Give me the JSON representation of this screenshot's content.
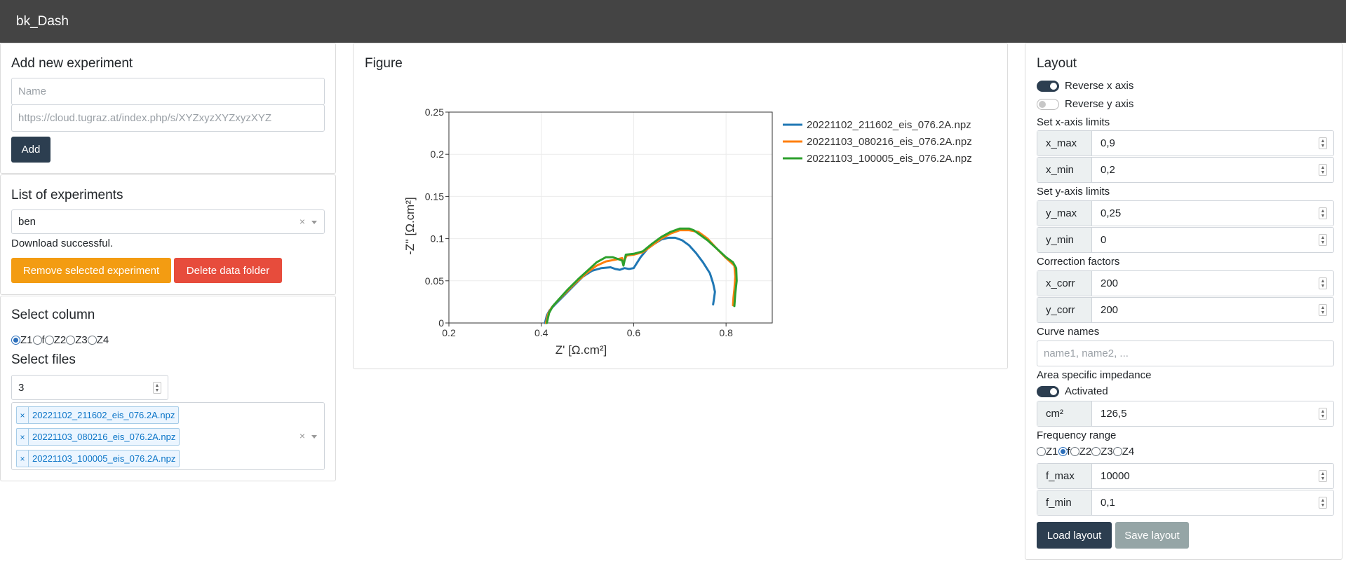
{
  "app": {
    "title": "bk_Dash"
  },
  "add_experiment": {
    "title": "Add new experiment",
    "name_placeholder": "Name",
    "url_placeholder": "https://cloud.tugraz.at/index.php/s/XYZxyzXYZxyzXYZ",
    "add_label": "Add"
  },
  "experiments": {
    "title": "List of experiments",
    "selected": "ben",
    "status": "Download successful.",
    "remove_label": "Remove selected experiment",
    "delete_label": "Delete data folder"
  },
  "columns": {
    "title": "Select column",
    "options": [
      "Z1",
      "f",
      "Z2",
      "Z3",
      "Z4"
    ],
    "selected": "Z1"
  },
  "files": {
    "title": "Select files",
    "count": "3",
    "selected": [
      "20221102_211602_eis_076.2A.npz",
      "20221103_080216_eis_076.2A.npz",
      "20221103_100005_eis_076.2A.npz"
    ]
  },
  "figure": {
    "title": "Figure"
  },
  "chart_data": {
    "type": "line",
    "xlabel": "Z' [Ω.cm²]",
    "ylabel": "-Z'' [Ω.cm²]",
    "xlim": [
      0.2,
      0.9
    ],
    "ylim": [
      0,
      0.25
    ],
    "xticks": [
      "0.2",
      "0.4",
      "0.6",
      "0.8"
    ],
    "yticks": [
      "0",
      "0.05",
      "0.1",
      "0.15",
      "0.2",
      "0.25"
    ],
    "grid": true,
    "legend": "right",
    "series": [
      {
        "name": "20221102_211602_eis_076.2A.npz",
        "color": "#1f77b4",
        "points": [
          [
            0.408,
            0
          ],
          [
            0.412,
            0.009
          ],
          [
            0.418,
            0.015
          ],
          [
            0.43,
            0.022
          ],
          [
            0.45,
            0.033
          ],
          [
            0.47,
            0.044
          ],
          [
            0.49,
            0.055
          ],
          [
            0.51,
            0.062
          ],
          [
            0.53,
            0.065
          ],
          [
            0.55,
            0.066
          ],
          [
            0.56,
            0.064
          ],
          [
            0.57,
            0.063
          ],
          [
            0.58,
            0.065
          ],
          [
            0.59,
            0.064
          ],
          [
            0.6,
            0.065
          ],
          [
            0.615,
            0.078
          ],
          [
            0.63,
            0.088
          ],
          [
            0.645,
            0.094
          ],
          [
            0.66,
            0.099
          ],
          [
            0.675,
            0.101
          ],
          [
            0.69,
            0.101
          ],
          [
            0.705,
            0.098
          ],
          [
            0.72,
            0.092
          ],
          [
            0.735,
            0.083
          ],
          [
            0.75,
            0.072
          ],
          [
            0.765,
            0.059
          ],
          [
            0.772,
            0.047
          ],
          [
            0.776,
            0.037
          ],
          [
            0.774,
            0.029
          ],
          [
            0.772,
            0.022
          ]
        ]
      },
      {
        "name": "20221103_080216_eis_076.2A.npz",
        "color": "#ff7f0e",
        "points": [
          [
            0.41,
            0
          ],
          [
            0.415,
            0.011
          ],
          [
            0.422,
            0.018
          ],
          [
            0.435,
            0.026
          ],
          [
            0.455,
            0.037
          ],
          [
            0.475,
            0.048
          ],
          [
            0.5,
            0.06
          ],
          [
            0.52,
            0.068
          ],
          [
            0.54,
            0.073
          ],
          [
            0.56,
            0.075
          ],
          [
            0.575,
            0.077
          ],
          [
            0.577,
            0.071
          ],
          [
            0.585,
            0.08
          ],
          [
            0.6,
            0.081
          ],
          [
            0.62,
            0.084
          ],
          [
            0.64,
            0.092
          ],
          [
            0.66,
            0.1
          ],
          [
            0.68,
            0.106
          ],
          [
            0.7,
            0.11
          ],
          [
            0.72,
            0.11
          ],
          [
            0.74,
            0.108
          ],
          [
            0.76,
            0.1
          ],
          [
            0.78,
            0.088
          ],
          [
            0.8,
            0.077
          ],
          [
            0.81,
            0.072
          ],
          [
            0.818,
            0.068
          ],
          [
            0.82,
            0.055
          ],
          [
            0.818,
            0.04
          ],
          [
            0.816,
            0.03
          ],
          [
            0.815,
            0.021
          ]
        ]
      },
      {
        "name": "20221103_100005_eis_076.2A.npz",
        "color": "#2ca02c",
        "points": [
          [
            0.412,
            0
          ],
          [
            0.417,
            0.012
          ],
          [
            0.425,
            0.02
          ],
          [
            0.438,
            0.028
          ],
          [
            0.458,
            0.04
          ],
          [
            0.48,
            0.052
          ],
          [
            0.5,
            0.062
          ],
          [
            0.52,
            0.072
          ],
          [
            0.54,
            0.078
          ],
          [
            0.555,
            0.078
          ],
          [
            0.575,
            0.074
          ],
          [
            0.578,
            0.068
          ],
          [
            0.583,
            0.081
          ],
          [
            0.6,
            0.082
          ],
          [
            0.62,
            0.085
          ],
          [
            0.64,
            0.094
          ],
          [
            0.66,
            0.102
          ],
          [
            0.68,
            0.108
          ],
          [
            0.7,
            0.112
          ],
          [
            0.72,
            0.112
          ],
          [
            0.73,
            0.11
          ],
          [
            0.74,
            0.106
          ],
          [
            0.76,
            0.098
          ],
          [
            0.78,
            0.088
          ],
          [
            0.8,
            0.078
          ],
          [
            0.815,
            0.072
          ],
          [
            0.822,
            0.065
          ],
          [
            0.823,
            0.05
          ],
          [
            0.82,
            0.035
          ],
          [
            0.818,
            0.02
          ]
        ]
      }
    ]
  },
  "layout": {
    "title": "Layout",
    "reverse_x_label": "Reverse x axis",
    "reverse_x": true,
    "reverse_y_label": "Reverse y axis",
    "reverse_y": false,
    "x_limits_label": "Set x-axis limits",
    "x_max_label": "x_max",
    "x_max": "0,9",
    "x_min_label": "x_min",
    "x_min": "0,2",
    "y_limits_label": "Set y-axis limits",
    "y_max_label": "y_max",
    "y_max": "0,25",
    "y_min_label": "y_min",
    "y_min": "0",
    "correction_label": "Correction factors",
    "x_corr_label": "x_corr",
    "x_corr": "200",
    "y_corr_label": "y_corr",
    "y_corr": "200",
    "curve_names_label": "Curve names",
    "curve_names_placeholder": "name1, name2, ...",
    "asi_label": "Area specific impedance",
    "activated_label": "Activated",
    "activated": true,
    "cm2_label": "cm²",
    "cm2": "126,5",
    "freq_label": "Frequency range",
    "freq_options": [
      "Z1",
      "f",
      "Z2",
      "Z3",
      "Z4"
    ],
    "freq_selected": "f",
    "f_max_label": "f_max",
    "f_max": "10000",
    "f_min_label": "f_min",
    "f_min": "0,1",
    "load_label": "Load layout",
    "save_label": "Save layout"
  }
}
